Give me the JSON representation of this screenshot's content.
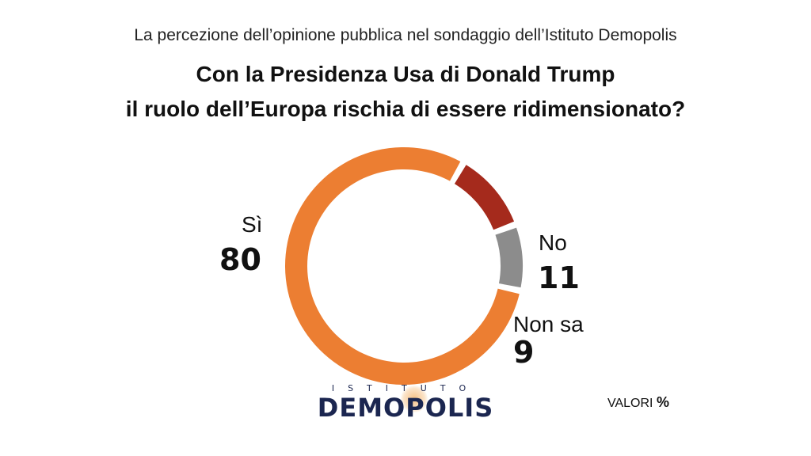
{
  "header": {
    "subtitle": "La percezione dell’opinione pubblica nel sondaggio dell’Istituto Demopolis",
    "title_line1": "Con la Presidenza Usa di Donald Trump",
    "title_line2": "il ruolo dell’Europa rischia di essere ridimensionato?"
  },
  "chart_data": {
    "type": "pie",
    "subtype": "donut",
    "title": "Con la Presidenza Usa di Donald Trump il ruolo dell’Europa rischia di essere ridimensionato?",
    "categories": [
      "Sì",
      "No",
      "Non sa"
    ],
    "values": [
      80,
      11,
      9
    ],
    "colors": [
      "#ec7e32",
      "#a52a1c",
      "#8c8c8c"
    ],
    "unit": "%"
  },
  "labels": {
    "si_label": "Sì",
    "si_value": "80",
    "no_label": "No",
    "no_value": "11",
    "nonsa_label": "Non sa",
    "nonsa_value": "9"
  },
  "footer": {
    "logo_top": "ISTITUTO",
    "logo_main": "DEMOPOLIS",
    "unit_label": "VALORI",
    "unit_symbol": "%"
  }
}
